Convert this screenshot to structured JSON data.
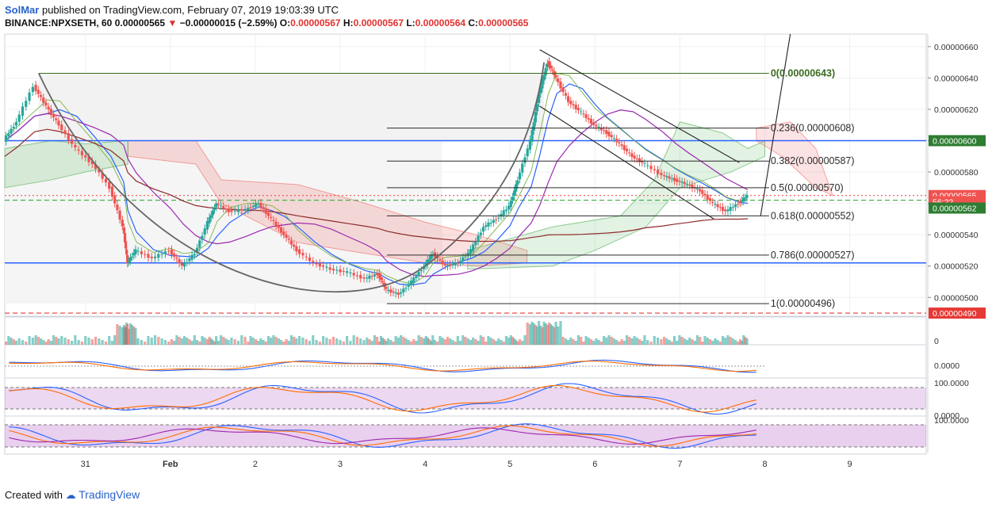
{
  "header": {
    "author": "SolMar",
    "published": "published on TradingView.com, February 07, 2019 19:03:39 UTC",
    "symbol": "BINANCE:NPXSETH, 60",
    "last": "0.00000565",
    "arrow": "▼",
    "change": "−0.00000015 (−2.59%)",
    "o_label": "O:",
    "o": "0.00000567",
    "h_label": "H:",
    "h": "0.00000567",
    "l_label": "L:",
    "l": "0.00000564",
    "c_label": "C:",
    "c": "0.00000565"
  },
  "footer": {
    "created": "Created with",
    "brand": "TradingView"
  },
  "colors": {
    "up": "#26a69a",
    "down": "#ef5350",
    "fib": "#2b2b2b",
    "fib0": "#3a6b1f",
    "blue": "#2962ff",
    "red": "#e53935",
    "green": "#2e7d32"
  },
  "chart_data": {
    "type": "candlestick",
    "y_range": [
      4.88e-06,
      6.68e-06
    ],
    "price_ticks": [
      "0.00000660",
      "0.00000640",
      "0.00000620",
      "0.00000600",
      "0.00000580",
      "0.00000560",
      "0.00000540",
      "0.00000520",
      "0.00000500"
    ],
    "price_tick_values": [
      6.6e-06,
      6.4e-06,
      6.2e-06,
      6e-06,
      5.8e-06,
      5.6e-06,
      5.4e-06,
      5.2e-06,
      5e-06
    ],
    "x_range": [
      30.05,
      9.9
    ],
    "x_labels": [
      {
        "t": 31,
        "label": "31"
      },
      {
        "t": 32,
        "label": "Feb"
      },
      {
        "t": 33,
        "label": "2"
      },
      {
        "t": 34,
        "label": "3"
      },
      {
        "t": 35,
        "label": "4"
      },
      {
        "t": 36,
        "label": "5"
      },
      {
        "t": 37,
        "label": "6"
      },
      {
        "t": 38,
        "label": "7"
      },
      {
        "t": 39,
        "label": "8"
      },
      {
        "t": 40,
        "label": "9"
      }
    ],
    "x_domain": [
      30.05,
      40.9
    ],
    "fib_levels": [
      {
        "ratio": "0",
        "value": "0.00000643",
        "price": 6.43e-06
      },
      {
        "ratio": "0.236",
        "value": "0.00000608",
        "price": 6.08e-06
      },
      {
        "ratio": "0.382",
        "value": "0.00000587",
        "price": 5.87e-06
      },
      {
        "ratio": "0.5",
        "value": "0.00000570",
        "price": 5.7e-06
      },
      {
        "ratio": "0.618",
        "value": "0.00000552",
        "price": 5.52e-06
      },
      {
        "ratio": "0.786",
        "value": "0.00000527",
        "price": 5.27e-06
      },
      {
        "ratio": "1",
        "value": "0.00000496",
        "price": 4.96e-06
      }
    ],
    "price_labels": [
      {
        "text": "0.00000600",
        "price": 6e-06,
        "color": "#2e7d32"
      },
      {
        "text": "0.00000565",
        "price": 5.65e-06,
        "color": "#ef5350"
      },
      {
        "text": "56:22",
        "price": 5.61e-06,
        "color": "#ef5350"
      },
      {
        "text": "0.00000562",
        "price": 5.57e-06,
        "color": "#2e7d32"
      },
      {
        "text": "0.00000490",
        "price": 4.9e-06,
        "color": "#e53935"
      }
    ],
    "horizontal_lines": [
      {
        "price": 6e-06,
        "color": "#2962ff",
        "style": "solid"
      },
      {
        "price": 5.22e-06,
        "color": "#2962ff",
        "style": "solid"
      },
      {
        "price": 4.9e-06,
        "color": "#e53935",
        "style": "dashed"
      },
      {
        "price": 5.62e-06,
        "color": "#4caf50",
        "style": "dashed"
      },
      {
        "price": 5.65e-06,
        "color": "#ef5350",
        "style": "dotted"
      }
    ],
    "close_path": [
      [
        30.05,
        6e-06
      ],
      [
        30.2,
        6.12e-06
      ],
      [
        30.4,
        6.35e-06
      ],
      [
        30.55,
        6.22e-06
      ],
      [
        30.7,
        6.1e-06
      ],
      [
        30.9,
        5.95e-06
      ],
      [
        31.1,
        5.85e-06
      ],
      [
        31.3,
        5.7e-06
      ],
      [
        31.45,
        5.45e-06
      ],
      [
        31.5,
        5.22e-06
      ],
      [
        31.6,
        5.3e-06
      ],
      [
        31.8,
        5.25e-06
      ],
      [
        32.0,
        5.3e-06
      ],
      [
        32.15,
        5.2e-06
      ],
      [
        32.3,
        5.28e-06
      ],
      [
        32.45,
        5.48e-06
      ],
      [
        32.55,
        5.6e-06
      ],
      [
        32.7,
        5.55e-06
      ],
      [
        32.9,
        5.56e-06
      ],
      [
        33.05,
        5.6e-06
      ],
      [
        33.2,
        5.5e-06
      ],
      [
        33.35,
        5.4e-06
      ],
      [
        33.5,
        5.3e-06
      ],
      [
        33.7,
        5.22e-06
      ],
      [
        33.9,
        5.18e-06
      ],
      [
        34.1,
        5.16e-06
      ],
      [
        34.3,
        5.12e-06
      ],
      [
        34.45,
        5.15e-06
      ],
      [
        34.55,
        5.05e-06
      ],
      [
        34.7,
        5.02e-06
      ],
      [
        34.85,
        5.1e-06
      ],
      [
        35.0,
        5.2e-06
      ],
      [
        35.1,
        5.28e-06
      ],
      [
        35.25,
        5.2e-06
      ],
      [
        35.4,
        5.22e-06
      ],
      [
        35.55,
        5.3e-06
      ],
      [
        35.7,
        5.45e-06
      ],
      [
        35.85,
        5.5e-06
      ],
      [
        36.0,
        5.58e-06
      ],
      [
        36.1,
        5.75e-06
      ],
      [
        36.25,
        6e-06
      ],
      [
        36.35,
        6.3e-06
      ],
      [
        36.45,
        6.5e-06
      ],
      [
        36.55,
        6.4e-06
      ],
      [
        36.7,
        6.25e-06
      ],
      [
        36.85,
        6.18e-06
      ],
      [
        37.0,
        6.1e-06
      ],
      [
        37.15,
        6.05e-06
      ],
      [
        37.3,
        5.98e-06
      ],
      [
        37.45,
        5.9e-06
      ],
      [
        37.6,
        5.85e-06
      ],
      [
        37.8,
        5.78e-06
      ],
      [
        37.95,
        5.75e-06
      ],
      [
        38.1,
        5.72e-06
      ],
      [
        38.25,
        5.68e-06
      ],
      [
        38.4,
        5.6e-06
      ],
      [
        38.55,
        5.55e-06
      ],
      [
        38.7,
        5.6e-06
      ],
      [
        38.8,
        5.65e-06
      ]
    ],
    "subpanels": [
      {
        "name": "volume",
        "tick": "0"
      },
      {
        "name": "macd",
        "tick": "0.0000"
      },
      {
        "name": "stochastic",
        "tick": "100.0000",
        "tick2": "0.0000"
      },
      {
        "name": "stochastic-rsi",
        "tick": "100.0000"
      }
    ]
  }
}
